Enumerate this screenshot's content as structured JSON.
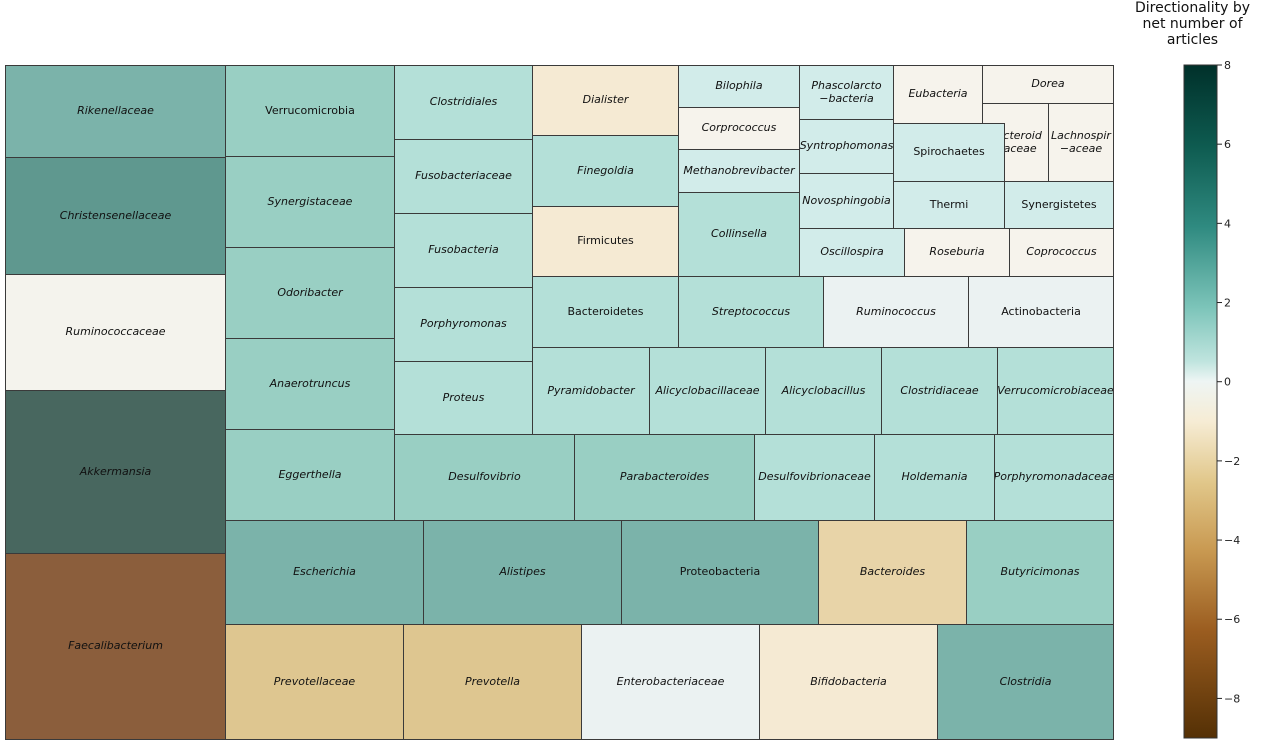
{
  "chart_data": {
    "type": "treemap",
    "colorbar": {
      "title": "Directionality by net number of articles",
      "range": [
        -9,
        8
      ],
      "ticks": [
        8,
        6,
        4,
        2,
        0,
        -2,
        -4,
        -6,
        -8
      ],
      "tick_labels": [
        "8",
        "6",
        "4",
        "2",
        "0",
        "−2",
        "−4",
        "−6",
        "−8"
      ]
    },
    "cells": [
      {
        "label": "Rikenellaceae",
        "value": 3.3,
        "italic": true
      },
      {
        "label": "Christensenellaceae",
        "value": 4.3,
        "italic": true
      },
      {
        "label": "Ruminococcaceae",
        "value": -0.4,
        "italic": true
      },
      {
        "label": "Akkermansia",
        "value": 6.0,
        "italic": true
      },
      {
        "label": "Faecalibacterium",
        "value": -6.0,
        "italic": true
      },
      {
        "label": "Verrucomicrobia",
        "value": 2.4,
        "italic": false
      },
      {
        "label": "Synergistaceae",
        "value": 2.4,
        "italic": true
      },
      {
        "label": "Odoribacter",
        "value": 2.4,
        "italic": true
      },
      {
        "label": "Anaerotruncus",
        "value": 2.4,
        "italic": true
      },
      {
        "label": "Eggerthella",
        "value": 2.4,
        "italic": true
      },
      {
        "label": "Clostridiales",
        "value": 1.8,
        "italic": true
      },
      {
        "label": "Fusobacteriaceae",
        "value": 1.8,
        "italic": true
      },
      {
        "label": "Fusobacteria",
        "value": 1.8,
        "italic": true
      },
      {
        "label": "Porphyromonas",
        "value": 1.8,
        "italic": true
      },
      {
        "label": "Proteus",
        "value": 1.8,
        "italic": true
      },
      {
        "label": "Dialister",
        "value": -1.2,
        "italic": true
      },
      {
        "label": "Finegoldia",
        "value": 1.8,
        "italic": true
      },
      {
        "label": "Firmicutes",
        "value": -1.2,
        "italic": false
      },
      {
        "label": "Bilophila",
        "value": 1.0,
        "italic": true
      },
      {
        "label": "Corprococcus",
        "value": -0.5,
        "italic": true
      },
      {
        "label": "Methanobrevibacter",
        "value": 1.0,
        "italic": true
      },
      {
        "label": "Collinsella",
        "value": 1.8,
        "italic": true
      },
      {
        "label": "Phascolarcto\n−bacteria",
        "value": 1.0,
        "italic": true
      },
      {
        "label": "Syntrophomonas",
        "value": 1.0,
        "italic": true
      },
      {
        "label": "Novosphingobia",
        "value": 1.0,
        "italic": true
      },
      {
        "label": "Eubacteria",
        "value": -0.5,
        "italic": true
      },
      {
        "label": "Dorea",
        "value": -0.5,
        "italic": true
      },
      {
        "label": "Bacteroid\n−aceae",
        "value": -0.5,
        "italic": true
      },
      {
        "label": "Lachnospir\n−aceae",
        "value": -0.5,
        "italic": true
      },
      {
        "label": "Spirochaetes",
        "value": 1.0,
        "italic": false
      },
      {
        "label": "Thermi",
        "value": 1.0,
        "italic": false
      },
      {
        "label": "Synergistetes",
        "value": 1.0,
        "italic": false
      },
      {
        "label": "Oscillospira",
        "value": 1.0,
        "italic": true
      },
      {
        "label": "Roseburia",
        "value": -0.5,
        "italic": true
      },
      {
        "label": "Coprococcus",
        "value": -0.5,
        "italic": true
      },
      {
        "label": "Bacteroidetes",
        "value": 1.8,
        "italic": false
      },
      {
        "label": "Streptococcus",
        "value": 1.8,
        "italic": true
      },
      {
        "label": "Ruminococcus",
        "value": 0.2,
        "italic": true
      },
      {
        "label": "Actinobacteria",
        "value": 0.2,
        "italic": false
      },
      {
        "label": "Pyramidobacter",
        "value": 1.8,
        "italic": true
      },
      {
        "label": "Alicyclobacillaceae",
        "value": 1.8,
        "italic": true
      },
      {
        "label": "Alicyclobacillus",
        "value": 1.8,
        "italic": true
      },
      {
        "label": "Clostridiaceae",
        "value": 1.8,
        "italic": true
      },
      {
        "label": "Verrucomicrobiaceae",
        "value": 1.8,
        "italic": true
      },
      {
        "label": "Desulfovibrio",
        "value": 2.4,
        "italic": true
      },
      {
        "label": "Parabacteroides",
        "value": 2.4,
        "italic": true
      },
      {
        "label": "Desulfovibrionaceae",
        "value": 1.8,
        "italic": true
      },
      {
        "label": "Holdemania",
        "value": 1.8,
        "italic": true
      },
      {
        "label": "Porphyromonadaceae",
        "value": 1.8,
        "italic": true
      },
      {
        "label": "Escherichia",
        "value": 3.3,
        "italic": true
      },
      {
        "label": "Alistipes",
        "value": 3.3,
        "italic": true
      },
      {
        "label": "Proteobacteria",
        "value": 3.3,
        "italic": false
      },
      {
        "label": "Bacteroides",
        "value": -2.2,
        "italic": true
      },
      {
        "label": "Butyricimonas",
        "value": 2.4,
        "italic": true
      },
      {
        "label": "Prevotellaceae",
        "value": -3.0,
        "italic": true
      },
      {
        "label": "Prevotella",
        "value": -3.0,
        "italic": true
      },
      {
        "label": "Enterobacteriaceae",
        "value": 0.2,
        "italic": true
      },
      {
        "label": "Bifidobacteria",
        "value": -1.2,
        "italic": true
      },
      {
        "label": "Clostridia",
        "value": 3.3,
        "italic": true
      }
    ]
  }
}
